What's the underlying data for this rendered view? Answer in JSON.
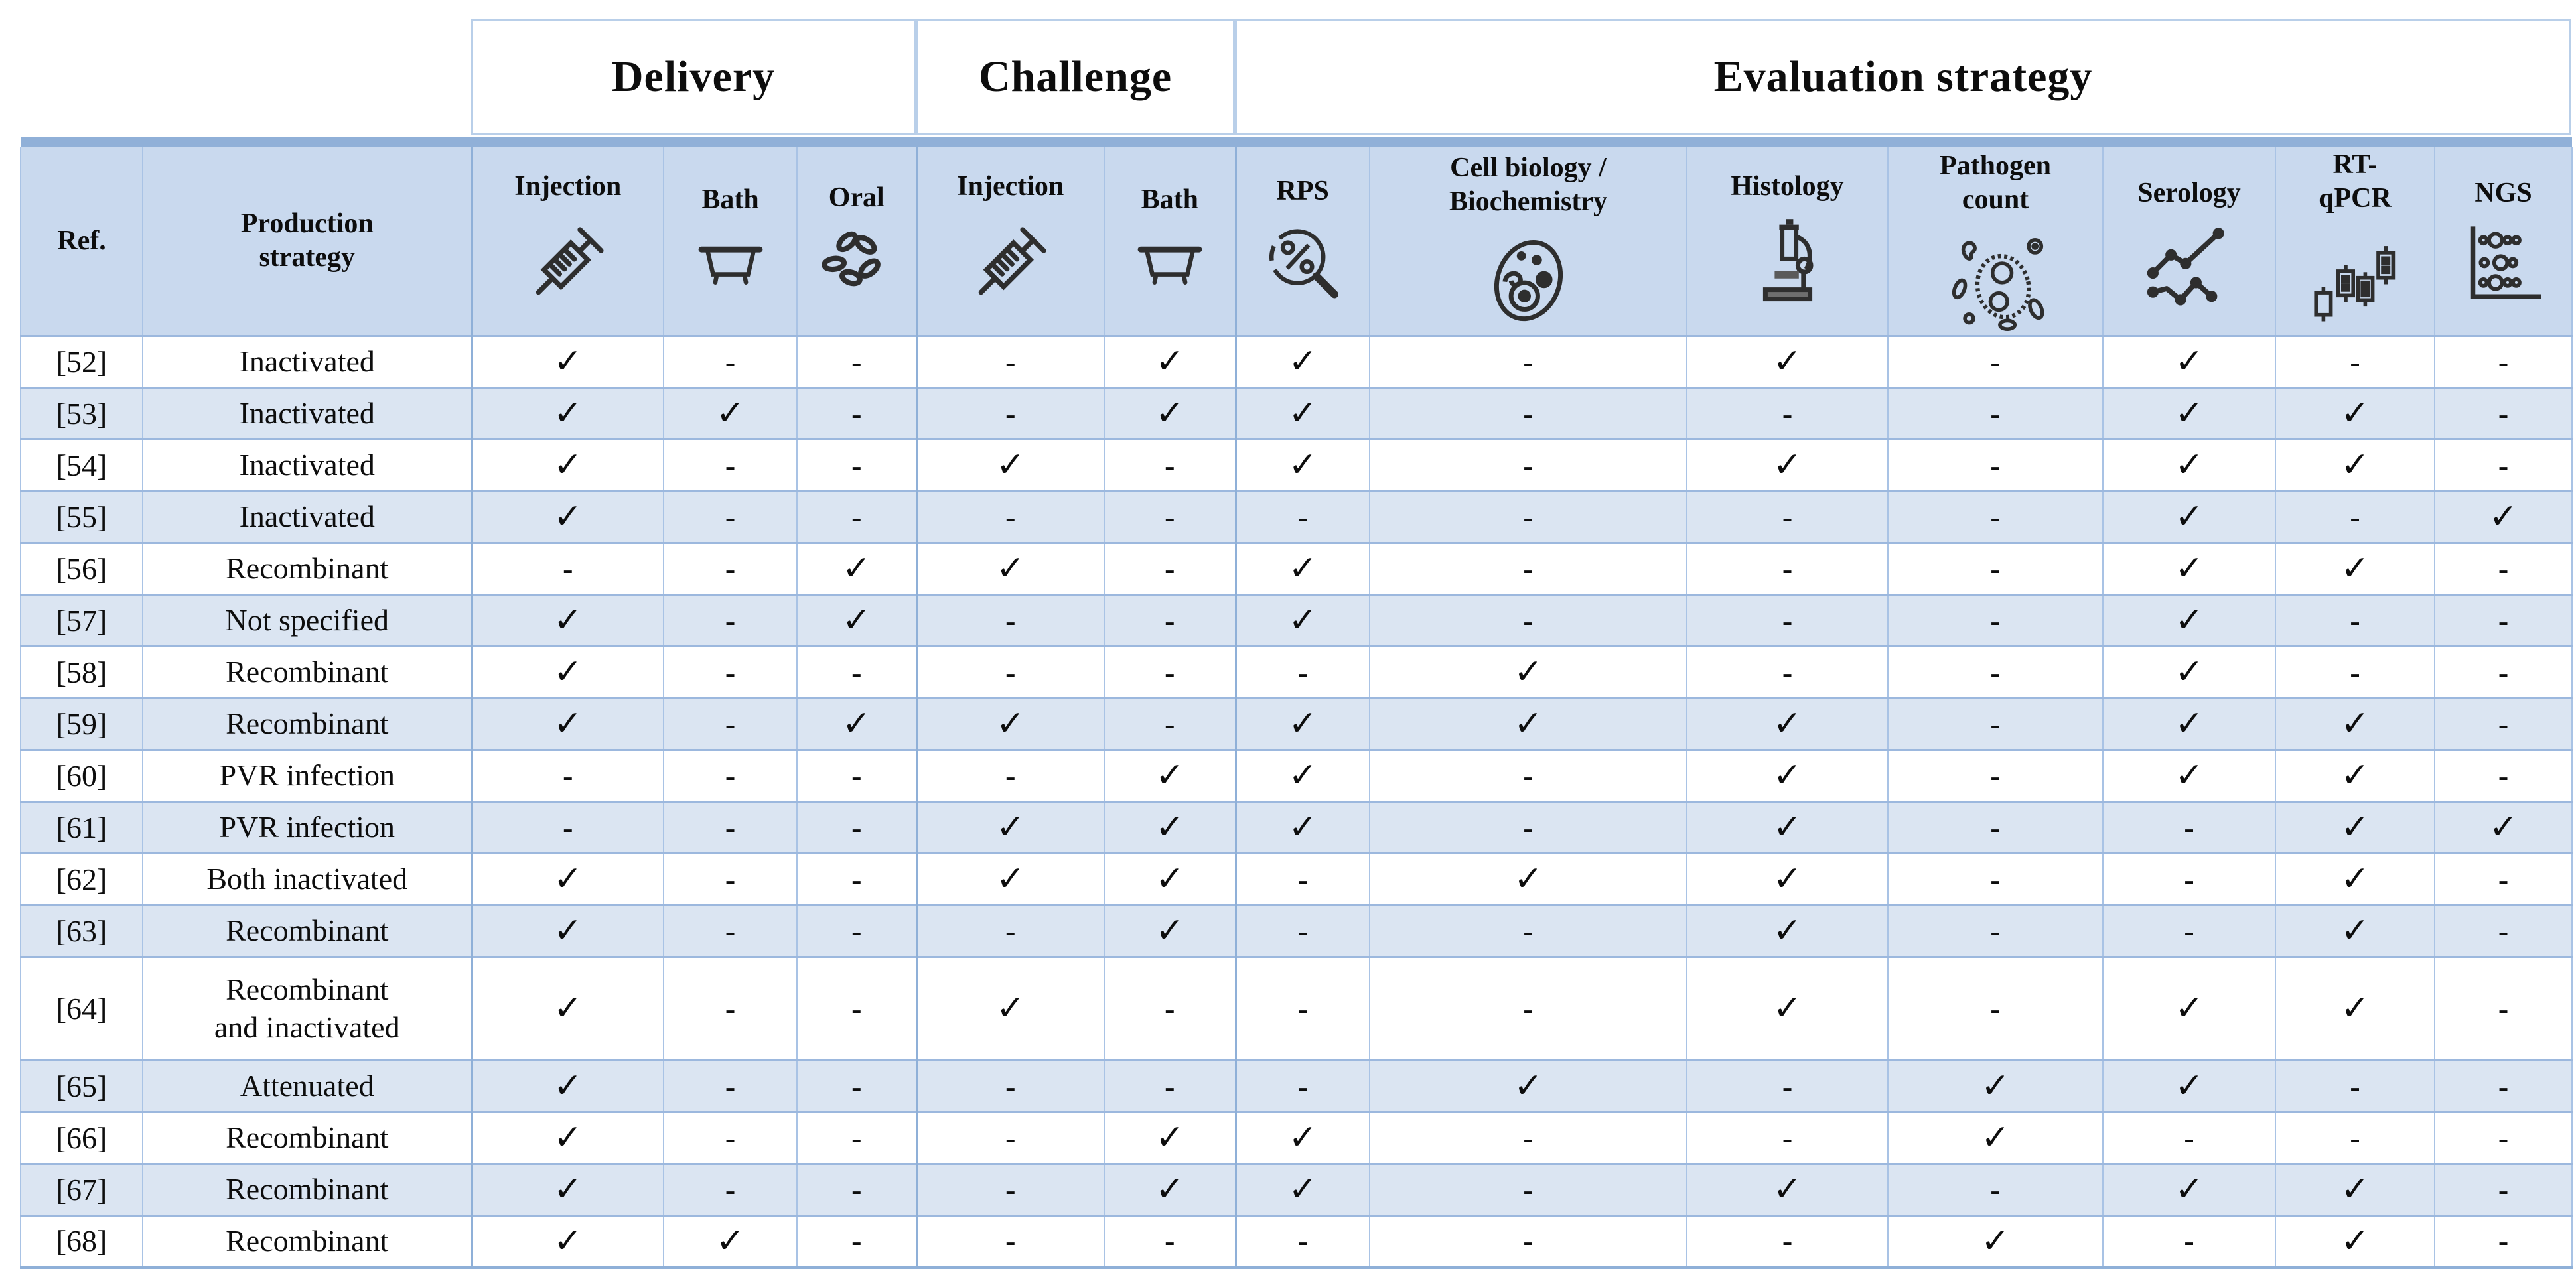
{
  "table": {
    "group_headers": [
      {
        "label": "Delivery",
        "span": 3
      },
      {
        "label": "Challenge",
        "span": 2
      },
      {
        "label": "Evaluation strategy",
        "span": 7
      }
    ],
    "columns": [
      {
        "id": "ref",
        "label": "Ref."
      },
      {
        "id": "production",
        "label": "Production\nstrategy"
      },
      {
        "id": "delivery_injection",
        "label": "Injection",
        "icon": "syringe-icon"
      },
      {
        "id": "delivery_bath",
        "label": "Bath",
        "icon": "bath-icon"
      },
      {
        "id": "delivery_oral",
        "label": "Oral",
        "icon": "oral-seeds-icon"
      },
      {
        "id": "challenge_injection",
        "label": "Injection",
        "icon": "syringe-icon"
      },
      {
        "id": "challenge_bath",
        "label": "Bath",
        "icon": "bath-icon"
      },
      {
        "id": "rps",
        "label": "RPS",
        "icon": "rps-magnifier-percent-icon"
      },
      {
        "id": "cell_biology",
        "label": "Cell biology /\nBiochemistry",
        "icon": "cell-icon"
      },
      {
        "id": "histology",
        "label": "Histology",
        "icon": "microscope-icon"
      },
      {
        "id": "pathogen_count",
        "label": "Pathogen\ncount",
        "icon": "pathogen-icon"
      },
      {
        "id": "serology",
        "label": "Serology",
        "icon": "serology-lines-icon"
      },
      {
        "id": "rt_qpcr",
        "label": "RT-\nqPCR",
        "icon": "qpcr-candlestick-icon"
      },
      {
        "id": "ngs",
        "label": "NGS",
        "icon": "ngs-dots-icon"
      }
    ],
    "symbols": {
      "check": "✓",
      "dash": "-"
    },
    "rows": [
      {
        "ref": "[52]",
        "production": "Inactivated",
        "marks": [
          "✓",
          "-",
          "-",
          "-",
          "✓",
          "✓",
          "-",
          "✓",
          "-",
          "✓",
          "-",
          "-"
        ]
      },
      {
        "ref": "[53]",
        "production": "Inactivated",
        "marks": [
          "✓",
          "✓",
          "-",
          "-",
          "✓",
          "✓",
          "-",
          "-",
          "-",
          "✓",
          "✓",
          "-"
        ]
      },
      {
        "ref": "[54]",
        "production": "Inactivated",
        "marks": [
          "✓",
          "-",
          "-",
          "✓",
          "-",
          "✓",
          "-",
          "✓",
          "-",
          "✓",
          "✓",
          "-"
        ]
      },
      {
        "ref": "[55]",
        "production": "Inactivated",
        "marks": [
          "✓",
          "-",
          "-",
          "-",
          "-",
          "-",
          "-",
          "-",
          "-",
          "✓",
          "-",
          "✓"
        ]
      },
      {
        "ref": "[56]",
        "production": "Recombinant",
        "marks": [
          "-",
          "-",
          "✓",
          "✓",
          "-",
          "✓",
          "-",
          "-",
          "-",
          "✓",
          "✓",
          "-"
        ]
      },
      {
        "ref": "[57]",
        "production": "Not specified",
        "marks": [
          "✓",
          "-",
          "✓",
          "-",
          "-",
          "✓",
          "-",
          "-",
          "-",
          "✓",
          "-",
          "-"
        ]
      },
      {
        "ref": "[58]",
        "production": "Recombinant",
        "marks": [
          "✓",
          "-",
          "-",
          "-",
          "-",
          "-",
          "✓",
          "-",
          "-",
          "✓",
          "-",
          "-"
        ]
      },
      {
        "ref": "[59]",
        "production": "Recombinant",
        "marks": [
          "✓",
          "-",
          "✓",
          "✓",
          "-",
          "✓",
          "✓",
          "✓",
          "-",
          "✓",
          "✓",
          "-"
        ]
      },
      {
        "ref": "[60]",
        "production": "PVR infection",
        "marks": [
          "-",
          "-",
          "-",
          "-",
          "✓",
          "✓",
          "-",
          "✓",
          "-",
          "✓",
          "✓",
          "-"
        ]
      },
      {
        "ref": "[61]",
        "production": "PVR infection",
        "marks": [
          "-",
          "-",
          "-",
          "✓",
          "✓",
          "✓",
          "-",
          "✓",
          "-",
          "-",
          "✓",
          "✓"
        ]
      },
      {
        "ref": "[62]",
        "production": "Both inactivated",
        "marks": [
          "✓",
          "-",
          "-",
          "✓",
          "✓",
          "-",
          "✓",
          "✓",
          "-",
          "-",
          "✓",
          "-"
        ]
      },
      {
        "ref": "[63]",
        "production": "Recombinant",
        "marks": [
          "✓",
          "-",
          "-",
          "-",
          "✓",
          "-",
          "-",
          "✓",
          "-",
          "-",
          "✓",
          "-"
        ]
      },
      {
        "ref": "[64]",
        "production": "Recombinant\nand inactivated",
        "tall": true,
        "marks": [
          "✓",
          "-",
          "-",
          "✓",
          "-",
          "-",
          "-",
          "✓",
          "-",
          "✓",
          "✓",
          "-"
        ]
      },
      {
        "ref": "[65]",
        "production": "Attenuated",
        "marks": [
          "✓",
          "-",
          "-",
          "-",
          "-",
          "-",
          "✓",
          "-",
          "✓",
          "✓",
          "-",
          "-"
        ]
      },
      {
        "ref": "[66]",
        "production": "Recombinant",
        "marks": [
          "✓",
          "-",
          "-",
          "-",
          "✓",
          "✓",
          "-",
          "-",
          "✓",
          "-",
          "-",
          "-"
        ]
      },
      {
        "ref": "[67]",
        "production": "Recombinant",
        "marks": [
          "✓",
          "-",
          "-",
          "-",
          "✓",
          "✓",
          "-",
          "✓",
          "-",
          "✓",
          "✓",
          "-"
        ]
      },
      {
        "ref": "[68]",
        "production": "Recombinant",
        "marks": [
          "✓",
          "✓",
          "-",
          "-",
          "-",
          "-",
          "-",
          "-",
          "✓",
          "-",
          "✓",
          "-"
        ]
      }
    ]
  },
  "colors": {
    "band": "#90b0d8",
    "header_bg": "#c9d9ee",
    "row_alt": "#dbe5f2",
    "grid_line": "#a9c3e5",
    "group_line": "#8fb0d8",
    "group_cell_border": "#b9cfe9",
    "text": "#0d0d0d",
    "icon_stroke": "#2e2e2e"
  }
}
